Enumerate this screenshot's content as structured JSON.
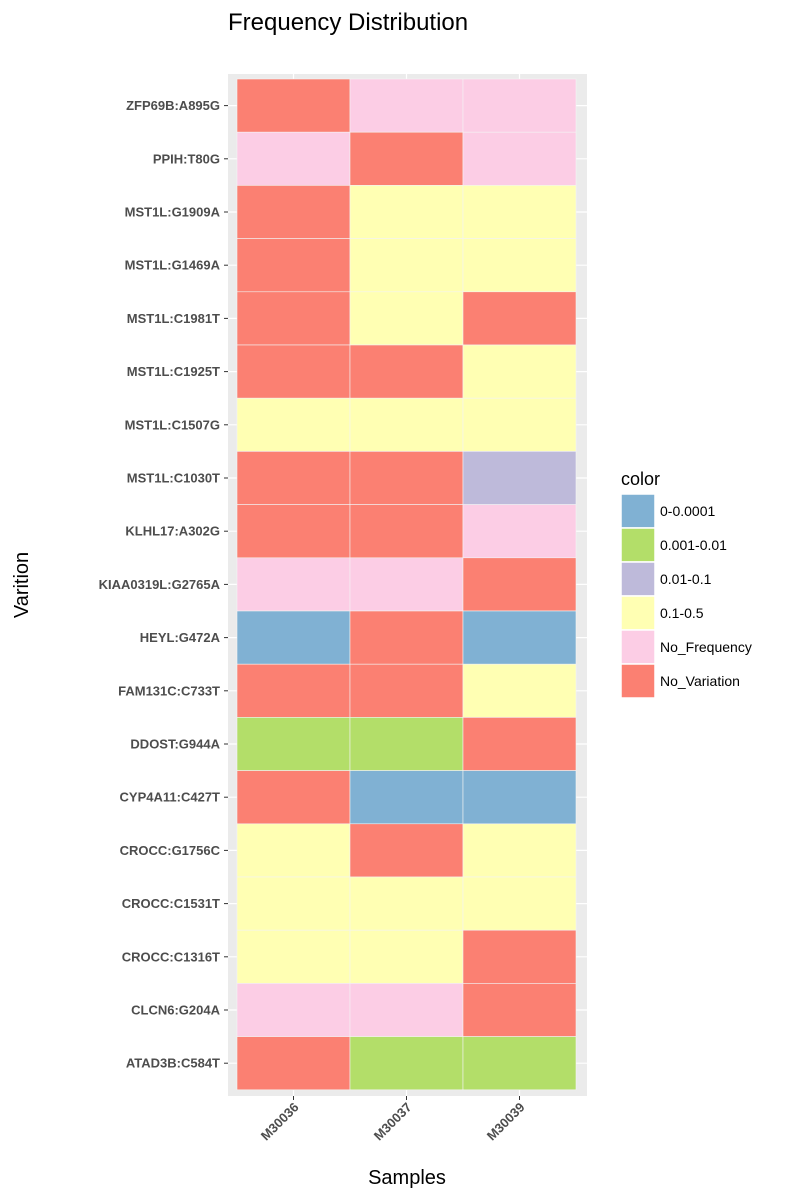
{
  "chart_data": {
    "type": "heatmap",
    "title": "Frequency Distribution",
    "xlabel": "Samples",
    "ylabel": "Varition",
    "x": [
      "M30036",
      "M30037",
      "M30039"
    ],
    "y": [
      "ZFP69B:A895G",
      "PPIH:T80G",
      "MST1L:G1909A",
      "MST1L:G1469A",
      "MST1L:C1981T",
      "MST1L:C1925T",
      "MST1L:C1507G",
      "MST1L:C1030T",
      "KLHL17:A302G",
      "KIAA0319L:G2765A",
      "HEYL:G472A",
      "FAM131C:C733T",
      "DDOST:G944A",
      "CYP4A11:C427T",
      "CROCC:G1756C",
      "CROCC:C1531T",
      "CROCC:C1316T",
      "CLCN6:G204A",
      "ATAD3B:C584T"
    ],
    "values": [
      [
        "No_Variation",
        "No_Frequency",
        "No_Frequency"
      ],
      [
        "No_Frequency",
        "No_Variation",
        "No_Frequency"
      ],
      [
        "No_Variation",
        "0.1-0.5",
        "0.1-0.5"
      ],
      [
        "No_Variation",
        "0.1-0.5",
        "0.1-0.5"
      ],
      [
        "No_Variation",
        "0.1-0.5",
        "No_Variation"
      ],
      [
        "No_Variation",
        "No_Variation",
        "0.1-0.5"
      ],
      [
        "0.1-0.5",
        "0.1-0.5",
        "0.1-0.5"
      ],
      [
        "No_Variation",
        "No_Variation",
        "0.01-0.1"
      ],
      [
        "No_Variation",
        "No_Variation",
        "No_Frequency"
      ],
      [
        "No_Frequency",
        "No_Frequency",
        "No_Variation"
      ],
      [
        "0-0.0001",
        "No_Variation",
        "0-0.0001"
      ],
      [
        "No_Variation",
        "No_Variation",
        "0.1-0.5"
      ],
      [
        "0.001-0.01",
        "0.001-0.01",
        "No_Variation"
      ],
      [
        "No_Variation",
        "0-0.0001",
        "0-0.0001"
      ],
      [
        "0.1-0.5",
        "No_Variation",
        "0.1-0.5"
      ],
      [
        "0.1-0.5",
        "0.1-0.5",
        "0.1-0.5"
      ],
      [
        "0.1-0.5",
        "0.1-0.5",
        "No_Variation"
      ],
      [
        "No_Frequency",
        "No_Frequency",
        "No_Variation"
      ],
      [
        "No_Variation",
        "0.001-0.01",
        "0.001-0.01"
      ]
    ],
    "legend": {
      "title": "color",
      "position": "right",
      "entries": [
        {
          "label": "0-0.0001",
          "color": "#80b1d3"
        },
        {
          "label": "0.001-0.01",
          "color": "#b3de69"
        },
        {
          "label": "0.01-0.1",
          "color": "#bebada"
        },
        {
          "label": "0.1-0.5",
          "color": "#ffffb3"
        },
        {
          "label": "No_Frequency",
          "color": "#fccde5"
        },
        {
          "label": "No_Variation",
          "color": "#fb8072"
        }
      ]
    },
    "grid": true,
    "panel_background": "#ebebeb"
  }
}
